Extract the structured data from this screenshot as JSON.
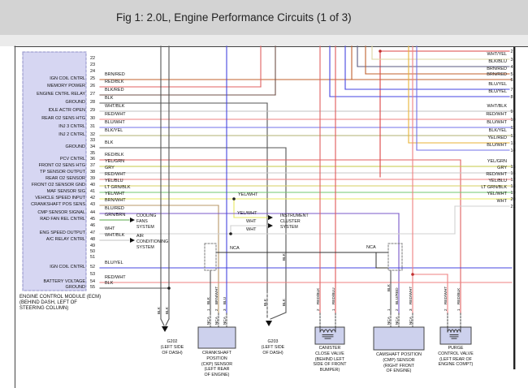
{
  "title": "Fig 1: 2.0L, Engine Performance Circuits (1 of 3)",
  "ecm": {
    "caption": [
      "ENGINE CONTROL MODULE (ECM)",
      "(BEHIND DASH, LEFT OF",
      "STEERING COLUMN)"
    ],
    "pins": [
      {
        "num": "22",
        "label": "",
        "wire": ""
      },
      {
        "num": "23",
        "label": "",
        "wire": ""
      },
      {
        "num": "24",
        "label": "",
        "wire": ""
      },
      {
        "num": "25",
        "label": "IGN COIL CNTRL",
        "wire": "BRN/RED"
      },
      {
        "num": "26",
        "label": "MEMORY POWER",
        "wire": "RED/BLK"
      },
      {
        "num": "27",
        "label": "ENGINE CNTRL RELAY",
        "wire": "BLK/RED"
      },
      {
        "num": "28",
        "label": "GROUND",
        "wire": "BLK"
      },
      {
        "num": "29",
        "label": "IDLE ACTR OPEN",
        "wire": "WHT/BLK"
      },
      {
        "num": "30",
        "label": "REAR O2 SENS HTG",
        "wire": "RED/WHT"
      },
      {
        "num": "31",
        "label": "INJ 3 CNTRL",
        "wire": "BLU/WHT"
      },
      {
        "num": "32",
        "label": "INJ 2 CNTRL",
        "wire": "BLK/YEL"
      },
      {
        "num": "33",
        "label": "",
        "wire": ""
      },
      {
        "num": "34",
        "label": "GROUND",
        "wire": "BLK"
      },
      {
        "num": "35",
        "label": "",
        "wire": ""
      },
      {
        "num": "36",
        "label": "PCV CNTRL",
        "wire": "RED/BLK"
      },
      {
        "num": "37",
        "label": "FRONT O2 SENS HTG",
        "wire": "YEL/GRN"
      },
      {
        "num": "38",
        "label": "TP SENSOR OUTPUT",
        "wire": "GRY"
      },
      {
        "num": "39",
        "label": "REAR O2 SENSOR",
        "wire": "RED/WHT"
      },
      {
        "num": "40",
        "label": "FRONT O2 SENSOR GND",
        "wire": "YEL/BLU"
      },
      {
        "num": "41",
        "label": "MAF SENSOR SIG",
        "wire": "LT GRN/BLK"
      },
      {
        "num": "42",
        "label": "VEHICLE SPEED INPUT",
        "wire": "YEL/WHT"
      },
      {
        "num": "43",
        "label": "CRANKSHAFT POS SENS",
        "wire": "BRN/WHT"
      },
      {
        "num": "44",
        "label": "CMP SENSOR SIGNAL",
        "wire": "BLU/RED"
      },
      {
        "num": "45",
        "label": "RAD FAN REL CNTRL",
        "wire": "GRN/BRN"
      },
      {
        "num": "46",
        "label": "",
        "wire": ""
      },
      {
        "num": "47",
        "label": "ENG SPEED OUTPUT",
        "wire": "WHT"
      },
      {
        "num": "48",
        "label": "A/C RELAY CNTRL",
        "wire": "WHT/BLK"
      },
      {
        "num": "49",
        "label": "",
        "wire": ""
      },
      {
        "num": "50",
        "label": "",
        "wire": ""
      },
      {
        "num": "51",
        "label": "",
        "wire": ""
      },
      {
        "num": "52",
        "label": "IGN COIL CNTRL",
        "wire": "BLU/YEL"
      },
      {
        "num": "53",
        "label": "",
        "wire": ""
      },
      {
        "num": "54",
        "label": "BATTERY VOLTAGE",
        "wire": "RED/WHT"
      },
      {
        "num": "55",
        "label": "GROUND",
        "wire": "BLK"
      }
    ]
  },
  "right_connector": {
    "pins": [
      {
        "num": "2",
        "label": ""
      },
      {
        "num": "3",
        "label": "WHT/YEL"
      },
      {
        "num": "4",
        "label": "BLK/BLU"
      },
      {
        "num": "5",
        "label": "BRN/RED"
      },
      {
        "num": "6",
        "label": "BRN/RED"
      },
      {
        "num": "7",
        "label": "BLU/YEL"
      },
      {
        "num": "8",
        "label": "BLU/YEL"
      },
      {
        "num": "9",
        "label": "WHT/BLK"
      },
      {
        "num": "10",
        "label": "RED/WHT"
      },
      {
        "num": "11",
        "label": "BLU/WHT"
      },
      {
        "num": "12",
        "label": "BLK/YEL"
      },
      {
        "num": "13",
        "label": "YEL/RED"
      },
      {
        "num": "14",
        "label": "BLU/WHT"
      },
      {
        "num": "15",
        "label": "YEL/GRN"
      },
      {
        "num": "16",
        "label": "GRY"
      },
      {
        "num": "17",
        "label": "RED/WHT"
      },
      {
        "num": "18",
        "label": "YEL/BLU"
      },
      {
        "num": "19",
        "label": "LT GRN/BLK"
      },
      {
        "num": "20",
        "label": "YEL/WHT"
      },
      {
        "num": "21",
        "label": "WHT"
      }
    ]
  },
  "mid_labels": [
    {
      "text": "YEL/WHT"
    },
    {
      "text": "YEL/WHT"
    },
    {
      "text": "WHT"
    },
    {
      "text": "WHT"
    },
    {
      "text": "NCA"
    },
    {
      "text": "NCA"
    }
  ],
  "systems": {
    "cooling": [
      "COOLING",
      "FANS",
      "SYSTEM"
    ],
    "air": [
      "AIR",
      "CONDITIONING",
      "SYSTEM"
    ],
    "instrument": [
      "INSTRUMENT",
      "CLUSTER",
      "SYSTEM"
    ]
  },
  "components": [
    {
      "id": "g202",
      "lines": [
        "G202",
        "(LEFT SIDE",
        "OF DASH)"
      ]
    },
    {
      "id": "ckp-sensor",
      "lines": [
        "CRANKSHAFT",
        "POSITION",
        "(CKP) SENSOR",
        "(LEFT REAR",
        "OF ENGINE)"
      ]
    },
    {
      "id": "g203",
      "lines": [
        "G203",
        "(LEFT SIDE",
        "OF DASH)"
      ]
    },
    {
      "id": "canister-close-valve",
      "lines": [
        "CANISTER",
        "CLOSE VALVE",
        "(BEHIND LEFT",
        "SIDE OF FRONT",
        "BUMPER)"
      ]
    },
    {
      "id": "cmp-sensor",
      "lines": [
        "CAMSHAFT POSITION",
        "(CMP) SENSOR",
        "(RIGHT FRONT",
        "OF ENGINE)"
      ]
    },
    {
      "id": "purge-control-valve",
      "lines": [
        "PURGE",
        "CONTROL VALVE",
        "(LEFT REAR OF",
        "ENGINE COMPT)"
      ]
    }
  ],
  "wire_tags": [
    {
      "text": "BLK"
    },
    {
      "text": "BLK"
    },
    {
      "text": "BLK"
    },
    {
      "text": "1"
    },
    {
      "text": "NCA"
    },
    {
      "text": "BRN/WHT"
    },
    {
      "text": "2"
    },
    {
      "text": "NCA"
    },
    {
      "text": "BLU"
    },
    {
      "text": "3"
    },
    {
      "text": "NCA"
    },
    {
      "text": "BLK"
    },
    {
      "text": "BLK"
    },
    {
      "text": "BLK"
    },
    {
      "text": "RED/BLK"
    },
    {
      "text": "2"
    },
    {
      "text": "RED/BLU"
    },
    {
      "text": "1"
    },
    {
      "text": "BLK"
    },
    {
      "text": "1"
    },
    {
      "text": "NCA"
    },
    {
      "text": "BLU/RED"
    },
    {
      "text": "2"
    },
    {
      "text": "NCA"
    },
    {
      "text": "RED/WHT"
    },
    {
      "text": "3"
    },
    {
      "text": "NCA"
    },
    {
      "text": "RED/WHT"
    },
    {
      "text": "2"
    },
    {
      "text": "RED/BLK"
    },
    {
      "text": "1"
    }
  ],
  "palette": {
    "BRN_RED": "#c0622d",
    "RED_BLK": "#e06060",
    "BLK_RED": "#705048",
    "BLK": "#555555",
    "WHT_BLK": "#c2c2c2",
    "RED_WHT": "#ef8080",
    "BLU_WHT": "#7070e8",
    "BLK_YEL": "#b0b070",
    "YEL_GRN": "#c6ca45",
    "GRY": "#c8c8c8",
    "YEL_BLU": "#d6cf60",
    "LT_GRN_BLK": "#70c870",
    "YEL_WHT": "#e8e860",
    "BRN_WHT": "#b89868",
    "BLU_RED": "#7858c8",
    "GRN_BRN": "#58a848",
    "WHT": "#d0d0d0",
    "BLU_YEL": "#4545e0",
    "RED": "#dd4444",
    "WHT_YEL": "#dcd6a0",
    "BLK_BLU": "#5a5a80",
    "YEL_RED": "#e8b235",
    "BLU": "#4545e0",
    "RED_BLU": "#e05858",
    "DARK": "#333333"
  }
}
